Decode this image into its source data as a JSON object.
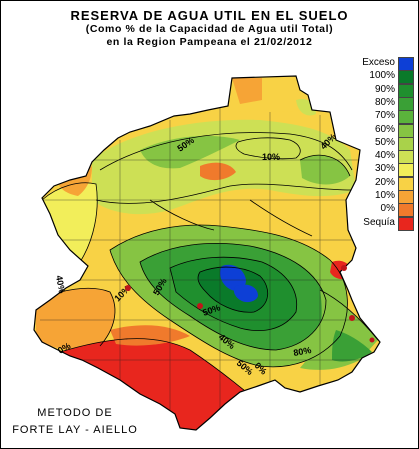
{
  "title": {
    "line1": "RESERVA DE AGUA UTIL EN EL SUELO",
    "line2": "(Como %  de la Capacidad de  Agua util Total)",
    "line3": "en la Region Pampeana el 21/02/2012"
  },
  "legend": [
    {
      "label": "Exceso",
      "color": "#0d3fd6"
    },
    {
      "label": "100%",
      "color": "#0a7a2a"
    },
    {
      "label": "90%",
      "color": "#1f8f2e"
    },
    {
      "label": "80%",
      "color": "#3aa036"
    },
    {
      "label": "70%",
      "color": "#5bb33c"
    },
    {
      "label": "60%",
      "color": "#86c443"
    },
    {
      "label": "50%",
      "color": "#a9d24a"
    },
    {
      "label": "40%",
      "color": "#cde055"
    },
    {
      "label": "30%",
      "color": "#f2ee5a"
    },
    {
      "label": "20%",
      "color": "#f8d245"
    },
    {
      "label": "10%",
      "color": "#f6a436"
    },
    {
      "label": "0%",
      "color": "#f07a2c"
    },
    {
      "label": "Sequía",
      "color": "#e8261e"
    }
  ],
  "method": {
    "line1": "METODO DE",
    "line2": "FORTE LAY - AIELLO"
  },
  "isolines": [
    "50%",
    "40%",
    "10%",
    "40%",
    "50%",
    "10%",
    "50%",
    "40%",
    "0%",
    "50%",
    "0%",
    "80%"
  ],
  "colors": {
    "border": "#000000",
    "exceso": "#0d3fd6",
    "sequia": "#e8261e"
  }
}
